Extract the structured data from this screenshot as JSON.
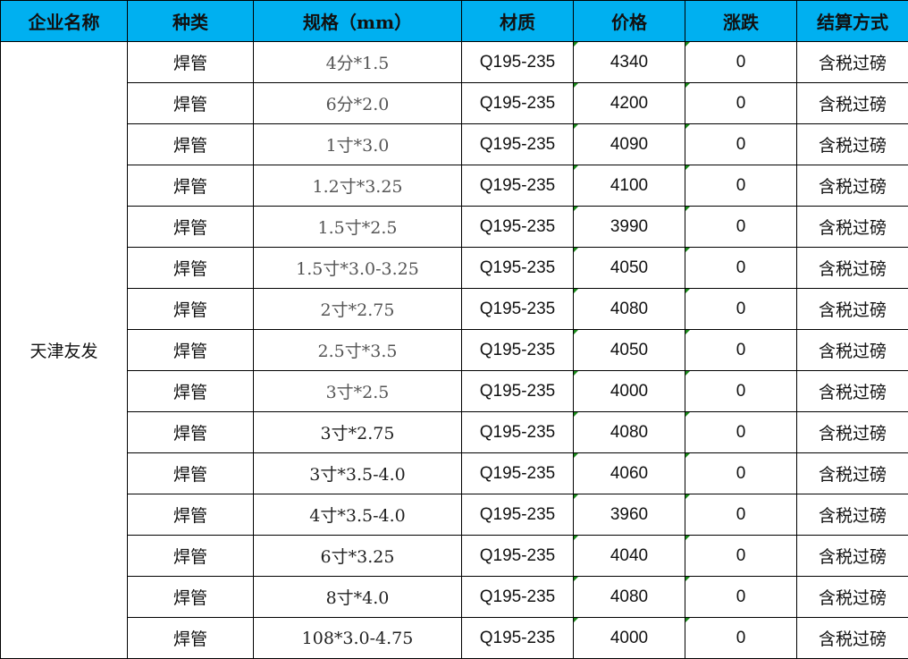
{
  "headers": [
    "企业名称",
    "种类",
    "规格（mm）",
    "材质",
    "价格",
    "涨跌",
    "结算方式"
  ],
  "company": "天津友发",
  "colors": {
    "header_bg": "#00B0F0",
    "comment_marker": "#1a8a1a"
  },
  "rows": [
    {
      "type": "焊管",
      "spec": "4分*1.5",
      "material": "Q195-235",
      "price": "4340",
      "change": "0",
      "settlement": "含税过磅"
    },
    {
      "type": "焊管",
      "spec": "6分*2.0",
      "material": "Q195-235",
      "price": "4200",
      "change": "0",
      "settlement": "含税过磅"
    },
    {
      "type": "焊管",
      "spec": "1寸*3.0",
      "material": "Q195-235",
      "price": "4090",
      "change": "0",
      "settlement": "含税过磅"
    },
    {
      "type": "焊管",
      "spec": "1.2寸*3.25",
      "material": "Q195-235",
      "price": "4100",
      "change": "0",
      "settlement": "含税过磅"
    },
    {
      "type": "焊管",
      "spec": "1.5寸*2.5",
      "material": "Q195-235",
      "price": "3990",
      "change": "0",
      "settlement": "含税过磅"
    },
    {
      "type": "焊管",
      "spec": "1.5寸*3.0-3.25",
      "material": "Q195-235",
      "price": "4050",
      "change": "0",
      "settlement": "含税过磅"
    },
    {
      "type": "焊管",
      "spec": "2寸*2.75",
      "material": "Q195-235",
      "price": "4080",
      "change": "0",
      "settlement": "含税过磅"
    },
    {
      "type": "焊管",
      "spec": "2.5寸*3.5",
      "material": "Q195-235",
      "price": "4050",
      "change": "0",
      "settlement": "含税过磅"
    },
    {
      "type": "焊管",
      "spec": "3寸*2.5",
      "material": "Q195-235",
      "price": "4000",
      "change": "0",
      "settlement": "含税过磅"
    },
    {
      "type": "焊管",
      "spec": "3寸*2.75",
      "material": "Q195-235",
      "price": "4080",
      "change": "0",
      "settlement": "含税过磅"
    },
    {
      "type": "焊管",
      "spec": "3寸*3.5-4.0",
      "material": "Q195-235",
      "price": "4060",
      "change": "0",
      "settlement": "含税过磅"
    },
    {
      "type": "焊管",
      "spec": "4寸*3.5-4.0",
      "material": "Q195-235",
      "price": "3960",
      "change": "0",
      "settlement": "含税过磅"
    },
    {
      "type": "焊管",
      "spec": "6寸*3.25",
      "material": "Q195-235",
      "price": "4040",
      "change": "0",
      "settlement": "含税过磅"
    },
    {
      "type": "焊管",
      "spec": "8寸*4.0",
      "material": "Q195-235",
      "price": "4080",
      "change": "0",
      "settlement": "含税过磅"
    },
    {
      "type": "焊管",
      "spec": "108*3.0-4.75",
      "material": "Q195-235",
      "price": "4000",
      "change": "0",
      "settlement": "含税过磅"
    }
  ]
}
